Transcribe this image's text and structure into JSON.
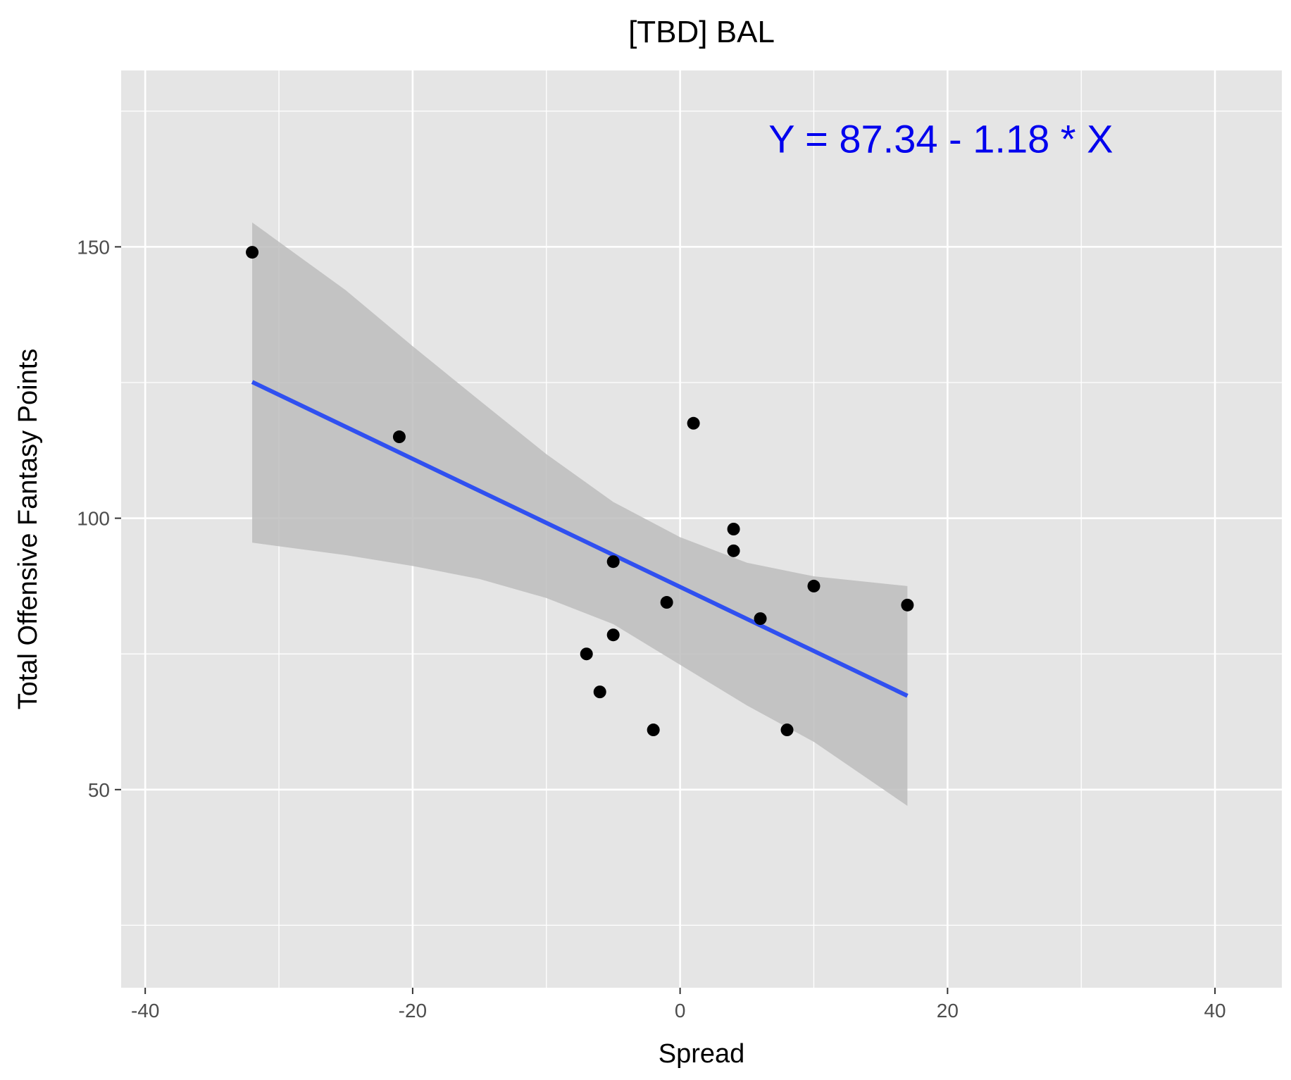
{
  "chart_data": {
    "type": "scatter",
    "title": "[TBD] BAL",
    "xlabel": "Spread",
    "ylabel": "Total Offensive Fantasy Points",
    "xlim": [
      -41.8,
      45.0
    ],
    "ylim": [
      13.5,
      182.5
    ],
    "x_ticks": [
      -40,
      -20,
      0,
      20,
      40
    ],
    "x_tick_labels": [
      "-40",
      "-20",
      "0",
      "20",
      "40"
    ],
    "y_ticks": [
      50,
      100,
      150
    ],
    "y_tick_labels": [
      "50",
      "100",
      "150"
    ],
    "grid": true,
    "points": [
      {
        "x": -32,
        "y": 149
      },
      {
        "x": -21,
        "y": 115
      },
      {
        "x": 1,
        "y": 117.5
      },
      {
        "x": 4,
        "y": 98
      },
      {
        "x": 4,
        "y": 94
      },
      {
        "x": -5,
        "y": 92
      },
      {
        "x": -1,
        "y": 84.5
      },
      {
        "x": 10,
        "y": 87.5
      },
      {
        "x": 17,
        "y": 84
      },
      {
        "x": 6,
        "y": 81.5
      },
      {
        "x": -5,
        "y": 78.5
      },
      {
        "x": -7,
        "y": 75
      },
      {
        "x": -6,
        "y": 68
      },
      {
        "x": -2,
        "y": 61
      },
      {
        "x": 8,
        "y": 61
      }
    ],
    "fit": {
      "intercept": 87.34,
      "slope": -1.18,
      "x_range": [
        -32,
        17
      ],
      "band": [
        {
          "x": -32,
          "lo": 95.5,
          "hi": 154.5
        },
        {
          "x": -25,
          "lo": 93.2,
          "hi": 142.0
        },
        {
          "x": -20,
          "lo": 91.2,
          "hi": 131.7
        },
        {
          "x": -15,
          "lo": 88.8,
          "hi": 121.7
        },
        {
          "x": -10,
          "lo": 85.3,
          "hi": 111.8
        },
        {
          "x": -5,
          "lo": 80.5,
          "hi": 103.0
        },
        {
          "x": 0,
          "lo": 73.0,
          "hi": 96.5
        },
        {
          "x": 5,
          "lo": 65.5,
          "hi": 91.8
        },
        {
          "x": 10,
          "lo": 58.8,
          "hi": 89.3
        },
        {
          "x": 17,
          "lo": 47.0,
          "hi": 87.5
        }
      ],
      "line_color": "#3050f0",
      "band_color": "#bdbdbd"
    },
    "annotation": {
      "text": "Y = 87.34 - 1.18 * X",
      "x": 19.5,
      "y": 170,
      "color": "#0000ee"
    },
    "point_color": "#000000",
    "panel_color": "#e5e5e5",
    "grid_color": "#ffffff"
  }
}
